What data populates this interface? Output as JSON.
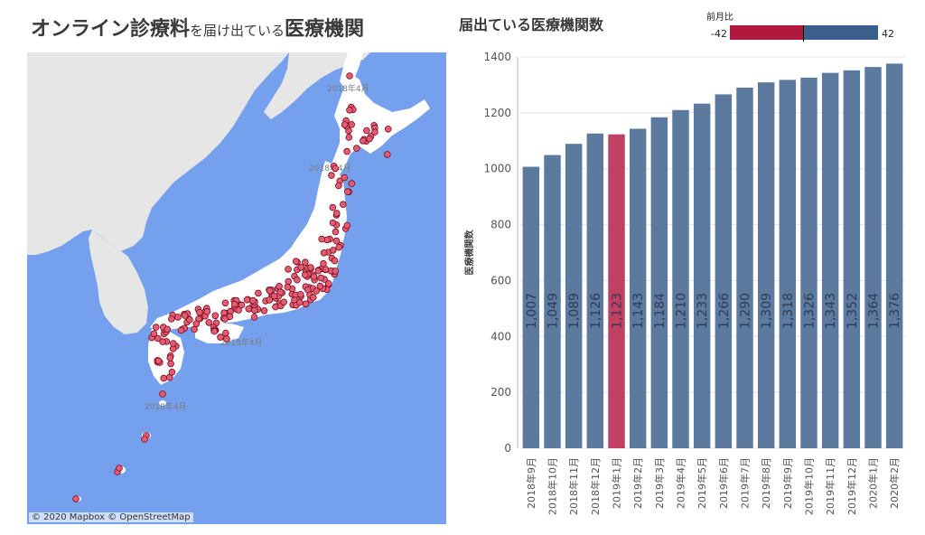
{
  "header": {
    "title_part1": "オンライン診療料",
    "title_part2": "を届け出ている",
    "title_part3": "医療機関"
  },
  "map": {
    "attribution": "© 2020 Mapbox © OpenStreetMap",
    "region_labels": [
      "2018年4月",
      "2018年4月",
      "2018年4月",
      "2018年4月"
    ],
    "colors": {
      "sea": "#74a0ee",
      "land": "#ffffff",
      "mainland": "#e6e6e6",
      "dot": "#e35d72",
      "dot_stroke": "#7a0b1f"
    }
  },
  "legend": {
    "title": "前月比",
    "min_label": "-42",
    "max_label": "42",
    "colors": {
      "negative": "#b0193e",
      "positive": "#3b5f8c"
    }
  },
  "chart_data": {
    "type": "bar",
    "title": "届出ている医療機関数",
    "ylabel": "医療機関数",
    "xlabel": "",
    "ylim": [
      0,
      1400
    ],
    "yticks": [
      0,
      200,
      400,
      600,
      800,
      1000,
      1200,
      1400
    ],
    "grid": true,
    "categories": [
      "2018年9月",
      "2018年10月",
      "2018年11月",
      "2018年12月",
      "2019年1月",
      "2019年2月",
      "2019年3月",
      "2019年4月",
      "2019年5月",
      "2019年6月",
      "2019年7月",
      "2019年8月",
      "2019年9月",
      "2019年10月",
      "2019年11月",
      "2019年12月",
      "2020年1月",
      "2020年2月"
    ],
    "values": [
      1007,
      1049,
      1089,
      1126,
      1123,
      1143,
      1184,
      1210,
      1233,
      1266,
      1290,
      1309,
      1318,
      1326,
      1343,
      1352,
      1364,
      1376
    ],
    "value_labels": [
      "1,007",
      "1,049",
      "1,089",
      "1,126",
      "1,123",
      "1,143",
      "1,184",
      "1,210",
      "1,233",
      "1,266",
      "1,290",
      "1,309",
      "1,318",
      "1,326",
      "1,343",
      "1,352",
      "1,364",
      "1,376"
    ],
    "colors": {
      "increase": "#5b7a9e",
      "decrease": "#c24163"
    }
  }
}
